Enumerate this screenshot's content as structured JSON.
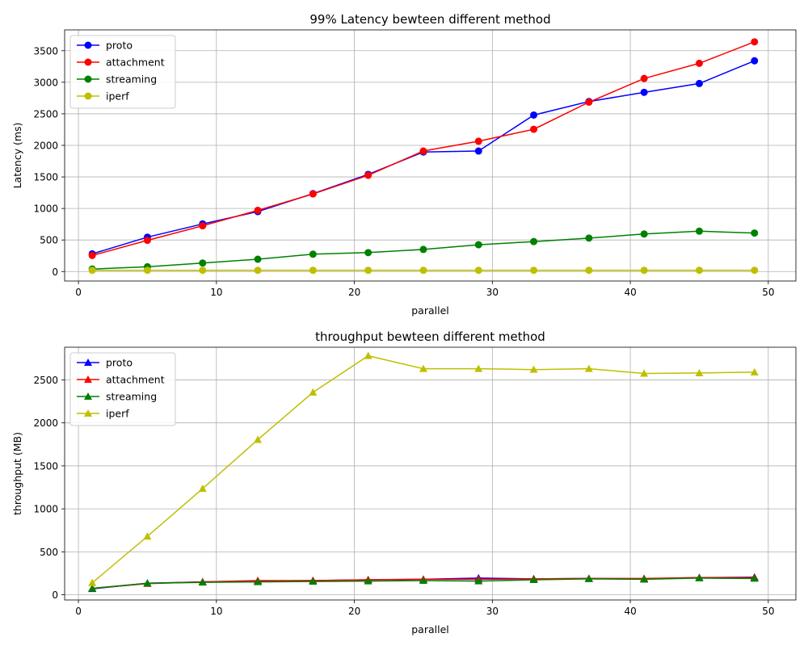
{
  "chart_data": [
    {
      "type": "line",
      "title": "99% Latency bewteen different method",
      "xlabel": "parallel",
      "ylabel": "Latency (ms)",
      "xlim": [
        -1,
        52
      ],
      "ylim": [
        -150,
        3830
      ],
      "xticks": [
        0,
        10,
        20,
        30,
        40,
        50
      ],
      "yticks": [
        0,
        500,
        1000,
        1500,
        2000,
        2500,
        3000,
        3500
      ],
      "grid": true,
      "legend_position": "top-left",
      "marker": "circle",
      "x": [
        1,
        5,
        9,
        13,
        17,
        21,
        25,
        29,
        33,
        37,
        41,
        45,
        49
      ],
      "series": [
        {
          "name": "proto",
          "color": "#0000ff",
          "values": [
            280,
            545,
            755,
            950,
            1235,
            1540,
            1895,
            1910,
            2480,
            2695,
            2840,
            2980,
            3340
          ]
        },
        {
          "name": "attachment",
          "color": "#ff0000",
          "values": [
            255,
            495,
            725,
            970,
            1230,
            1525,
            1910,
            2065,
            2255,
            2685,
            3060,
            3300,
            3640
          ]
        },
        {
          "name": "streaming",
          "color": "#008000",
          "values": [
            40,
            75,
            135,
            195,
            275,
            300,
            350,
            425,
            475,
            530,
            595,
            640,
            610
          ]
        },
        {
          "name": "iperf",
          "color": "#bfbf00",
          "values": [
            20,
            20,
            20,
            20,
            20,
            20,
            20,
            20,
            20,
            20,
            20,
            20,
            20
          ]
        }
      ]
    },
    {
      "type": "line",
      "title": "throughput bewteen different method",
      "xlabel": "parallel",
      "ylabel": "throughput (MB)",
      "xlim": [
        -1,
        52
      ],
      "ylim": [
        -60,
        2880
      ],
      "xticks": [
        0,
        10,
        20,
        30,
        40,
        50
      ],
      "yticks": [
        0,
        500,
        1000,
        1500,
        2000,
        2500
      ],
      "grid": true,
      "legend_position": "top-left",
      "marker": "triangle",
      "x": [
        1,
        5,
        9,
        13,
        17,
        21,
        25,
        29,
        33,
        37,
        41,
        45,
        49
      ],
      "series": [
        {
          "name": "proto",
          "color": "#0000ff",
          "values": [
            70,
            135,
            150,
            160,
            165,
            175,
            180,
            195,
            185,
            190,
            185,
            200,
            205
          ]
        },
        {
          "name": "attachment",
          "color": "#ff0000",
          "values": [
            75,
            130,
            150,
            165,
            165,
            175,
            180,
            180,
            185,
            190,
            190,
            200,
            200
          ]
        },
        {
          "name": "streaming",
          "color": "#008000",
          "values": [
            75,
            135,
            145,
            150,
            155,
            160,
            165,
            160,
            175,
            185,
            180,
            195,
            190
          ]
        },
        {
          "name": "iperf",
          "color": "#bfbf00",
          "values": [
            140,
            680,
            1235,
            1805,
            2355,
            2780,
            2630,
            2630,
            2620,
            2630,
            2575,
            2580,
            2590
          ]
        }
      ]
    }
  ]
}
